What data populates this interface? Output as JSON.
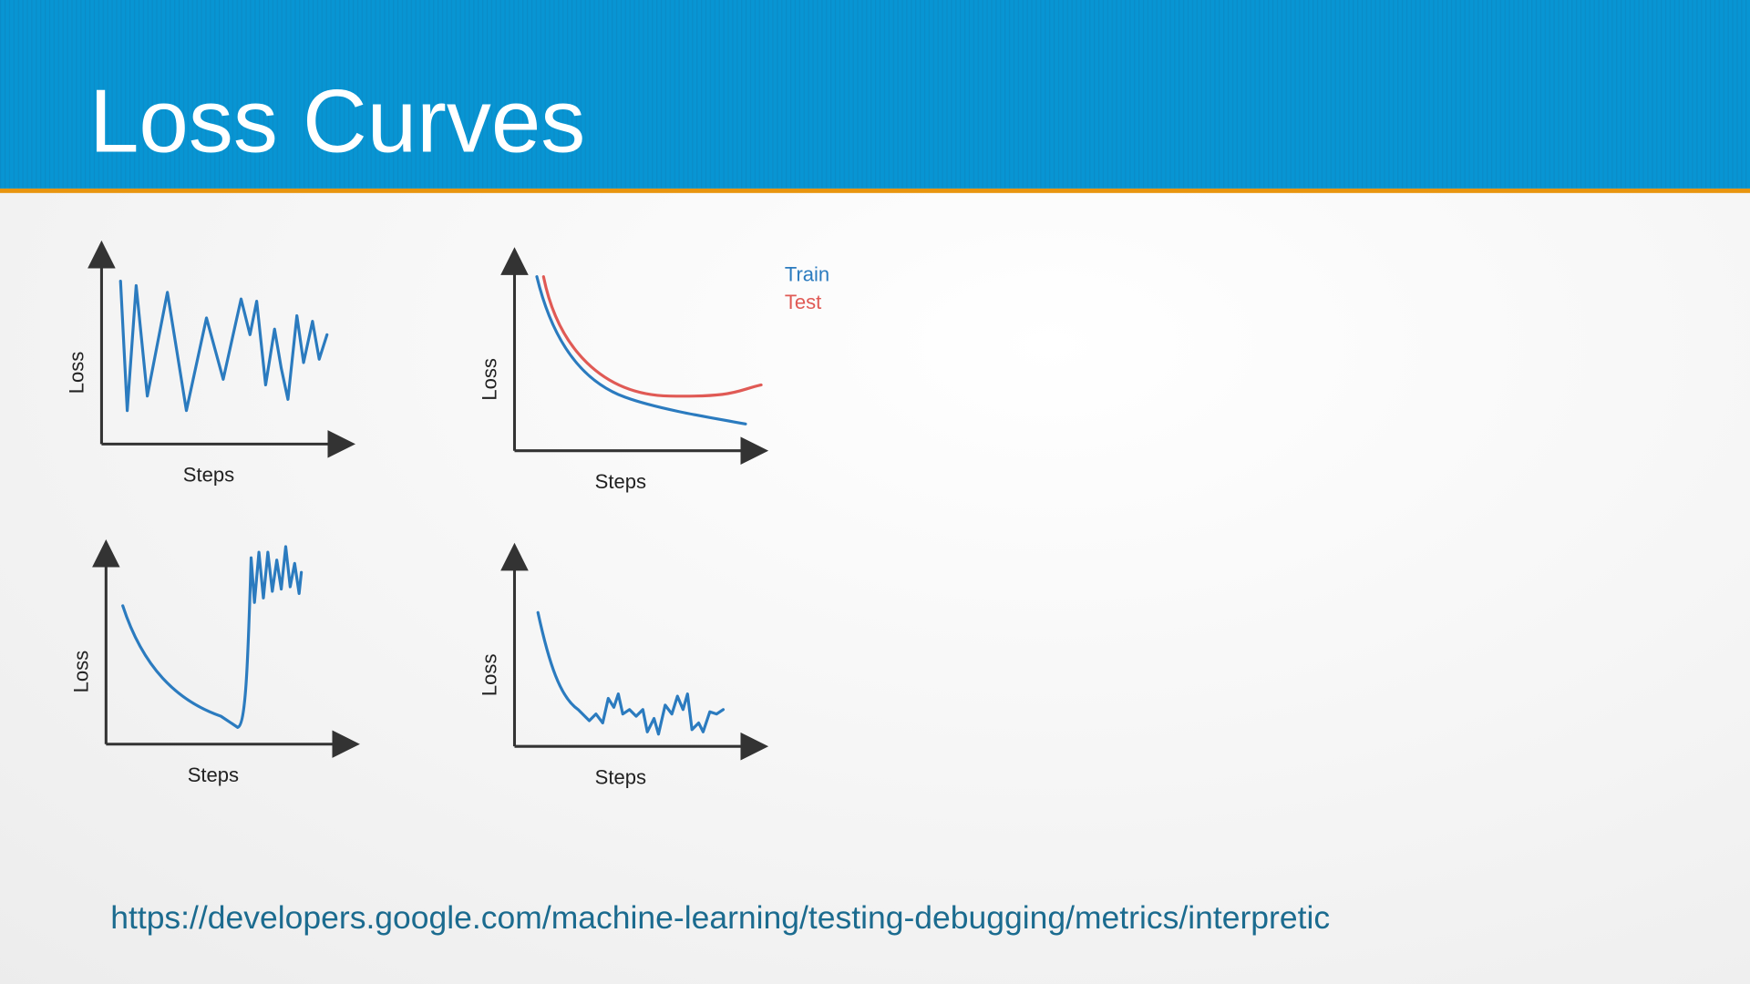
{
  "header": {
    "title": "Loss Curves"
  },
  "charts": [
    {
      "y_label": "Loss",
      "x_label": "Steps"
    },
    {
      "y_label": "Loss",
      "x_label": "Steps"
    },
    {
      "y_label": "Loss",
      "x_label": "Steps"
    },
    {
      "y_label": "Loss",
      "x_label": "Steps"
    }
  ],
  "legend": [
    "Train",
    "Test"
  ],
  "footer": {
    "url": "https://developers.google.com/machine-learning/testing-debugging/metrics/interpretic"
  }
}
